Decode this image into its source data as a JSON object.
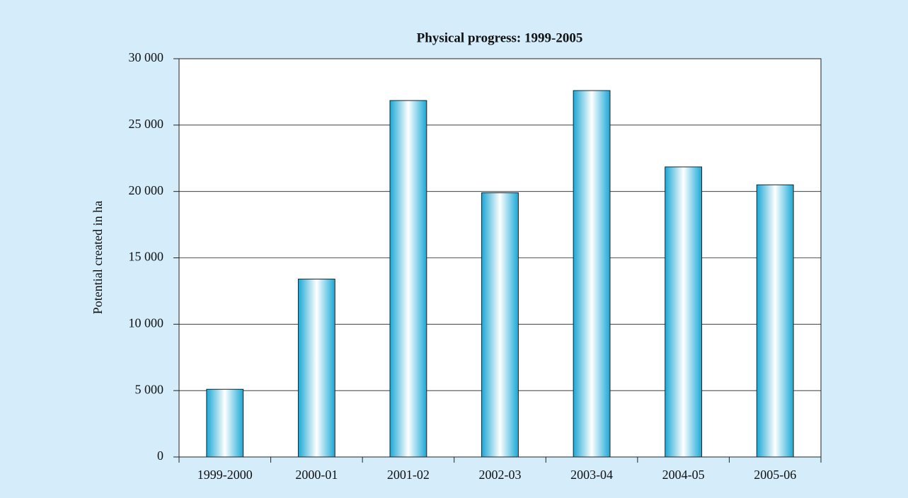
{
  "chart_data": {
    "type": "bar",
    "title": "Physical progress: 1999-2005",
    "y_label": "Potential created in ha",
    "categories": [
      "1999-2000",
      "2000-01",
      "2001-02",
      "2002-03",
      "2003-04",
      "2004-05",
      "2005-06"
    ],
    "values": [
      5100,
      13400,
      26850,
      19900,
      27600,
      21850,
      20500
    ],
    "color": "#1aa8d6",
    "ylim": [
      0,
      30000
    ],
    "yticks": [
      0,
      {
        "value": 5000,
        "label": "5 000"
      },
      {
        "value": 10000,
        "label": "10 000"
      },
      {
        "value": 15000,
        "label": "15 000"
      },
      {
        "value": 20000,
        "label": "20 000"
      },
      {
        "value": 25000,
        "label": "25 000"
      },
      {
        "value": 30000,
        "label": "30 000"
      }
    ],
    "grid": true
  }
}
